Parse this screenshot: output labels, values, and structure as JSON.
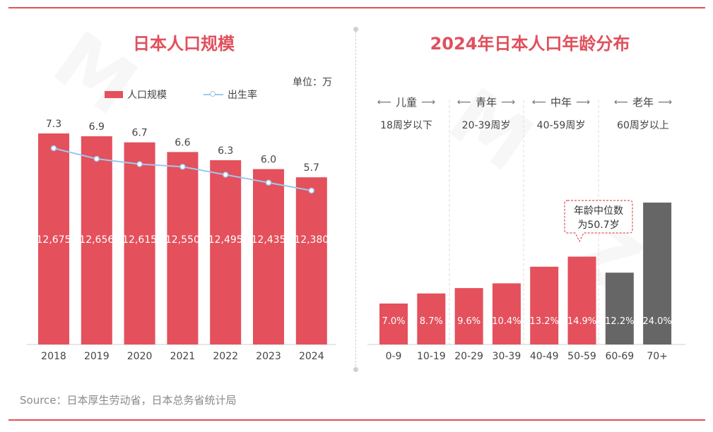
{
  "left_panel": {
    "title": "日本人口规模",
    "unit": "单位：万",
    "legend": {
      "bar_label": "人口规模",
      "line_label": "出生率"
    }
  },
  "right_panel": {
    "title": "2024年日本人口年龄分布",
    "groups": [
      {
        "name": "儿童",
        "range": "18周岁以下"
      },
      {
        "name": "青年",
        "range": "20-39周岁"
      },
      {
        "name": "中年",
        "range": "40-59周岁"
      },
      {
        "name": "老年",
        "range": "60周岁以上"
      }
    ],
    "annotation": {
      "line1": "年龄中位数",
      "line2": "为50.7岁"
    }
  },
  "source": "Source：日本厚生劳动省，日本总务省统计局",
  "colors": {
    "accent": "#e0505c",
    "bar": "#e4505c",
    "line": "#9ec8ec",
    "gray_bar": "#666666"
  },
  "chart_data": [
    {
      "type": "bar",
      "title": "日本人口规模",
      "categories": [
        "2018",
        "2019",
        "2020",
        "2021",
        "2022",
        "2023",
        "2024"
      ],
      "series": [
        {
          "name": "人口规模",
          "type": "bar",
          "values": [
            12675,
            12656,
            12615,
            12550,
            12495,
            12435,
            12380
          ],
          "labels": [
            "12,675",
            "12,656",
            "12,615",
            "12,550",
            "12,495",
            "12,435",
            "12,380"
          ]
        },
        {
          "name": "出生率",
          "type": "line",
          "values": [
            7.3,
            6.9,
            6.7,
            6.6,
            6.3,
            6.0,
            5.7
          ],
          "labels": [
            "7.3",
            "6.9",
            "6.7",
            "6.6",
            "6.3",
            "6.0",
            "5.7"
          ]
        }
      ],
      "unit": "万"
    },
    {
      "type": "bar",
      "title": "2024年日本人口年龄分布",
      "categories": [
        "0-9",
        "10-19",
        "20-29",
        "30-39",
        "40-49",
        "50-59",
        "60-69",
        "70+"
      ],
      "values": [
        7.0,
        8.7,
        9.6,
        10.4,
        13.2,
        14.9,
        12.2,
        24.0
      ],
      "labels": [
        "7.0%",
        "8.7%",
        "9.6%",
        "10.4%",
        "13.2%",
        "14.9%",
        "12.2%",
        "24.0%"
      ],
      "highlight": [
        "red",
        "red",
        "red",
        "red",
        "red",
        "red",
        "gray",
        "gray"
      ]
    }
  ]
}
